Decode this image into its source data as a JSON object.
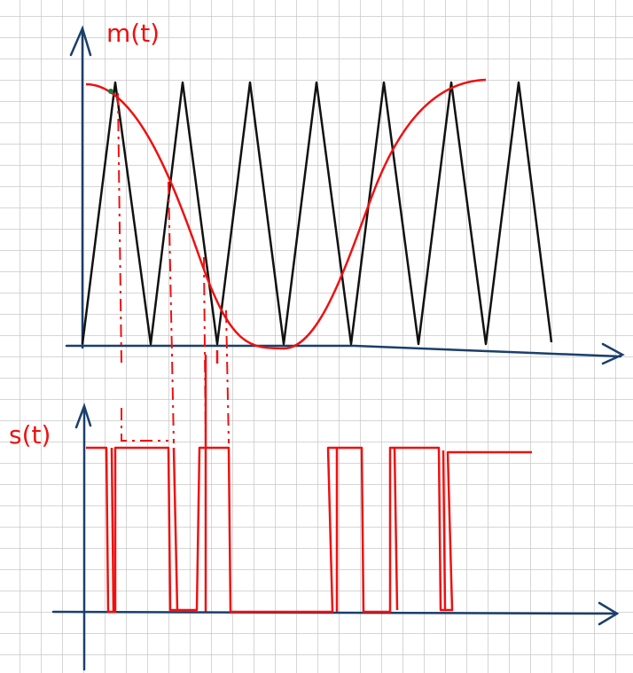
{
  "labels": {
    "top_axis": "m(t)",
    "bottom_axis": "s(t)"
  }
}
